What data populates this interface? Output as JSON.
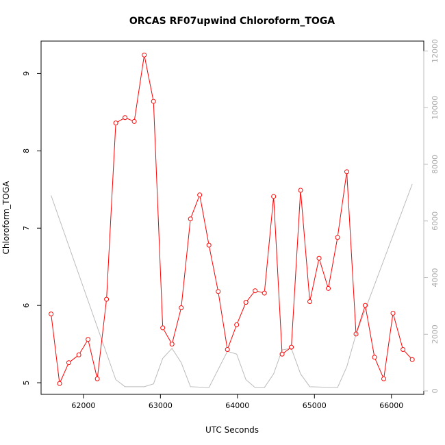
{
  "chart_data": {
    "type": "line",
    "title": "ORCAS RF07upwind Chloroform_TOGA",
    "xlabel": "UTC Seconds",
    "ylabel": "Chloroform_TOGA",
    "xlim": [
      61450,
      66420
    ],
    "ylim": [
      4.85,
      9.42
    ],
    "y2lim": [
      -120,
      12350
    ],
    "x_ticks": [
      62000,
      63000,
      64000,
      65000,
      66000
    ],
    "y_ticks": [
      5,
      6,
      7,
      8,
      9
    ],
    "y2_ticks": [
      0,
      2000,
      4000,
      6000,
      8000,
      10000,
      12000
    ],
    "colors": {
      "primary": "#ff0000",
      "secondary": "#bbbbbb",
      "axis": "#000000"
    },
    "series": [
      {
        "name": "Chloroform_TOGA",
        "axis": "left",
        "x": [
          61580,
          61690,
          61810,
          61940,
          62060,
          62180,
          62300,
          62420,
          62540,
          62660,
          62790,
          62910,
          63030,
          63150,
          63270,
          63390,
          63510,
          63630,
          63750,
          63870,
          63990,
          64110,
          64230,
          64350,
          64470,
          64580,
          64700,
          64820,
          64940,
          65060,
          65180,
          65300,
          65420,
          65540,
          65660,
          65780,
          65900,
          66020,
          66150,
          66270
        ],
        "values": [
          5.89,
          4.99,
          5.26,
          5.36,
          5.56,
          5.05,
          6.08,
          8.36,
          8.43,
          8.38,
          9.24,
          8.64,
          5.71,
          5.5,
          5.97,
          7.12,
          7.43,
          6.78,
          6.18,
          5.43,
          5.75,
          6.04,
          6.19,
          6.16,
          7.41,
          5.37,
          5.46,
          7.49,
          6.05,
          6.61,
          6.22,
          6.88,
          7.73,
          5.63,
          6.0,
          5.33,
          5.05,
          5.9,
          5.43,
          5.3
        ]
      },
      {
        "name": "secondary",
        "axis": "right",
        "x": [
          61580,
          62420,
          62540,
          62790,
          62910,
          63030,
          63150,
          63270,
          63390,
          63630,
          63870,
          63990,
          64110,
          64230,
          64350,
          64470,
          64580,
          64700,
          64820,
          64940,
          65300,
          65420,
          65540,
          66270
        ],
        "values": [
          6900,
          400,
          150,
          150,
          250,
          1150,
          1500,
          1000,
          150,
          120,
          1400,
          1300,
          400,
          120,
          120,
          600,
          1450,
          1500,
          600,
          150,
          120,
          850,
          2000,
          7300
        ]
      }
    ]
  }
}
